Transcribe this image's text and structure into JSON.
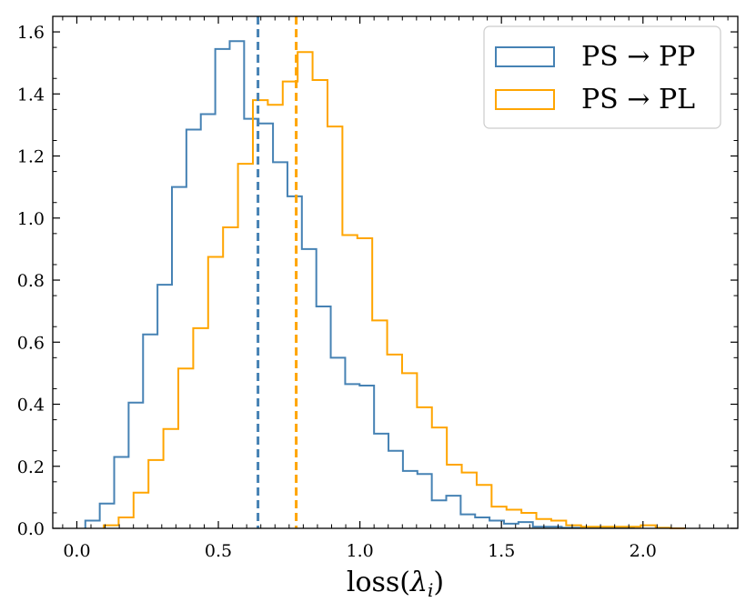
{
  "chart_data": {
    "type": "histogram",
    "title": "",
    "xlabel": "loss(λ_i)",
    "xlabel_parts": {
      "main": "loss(",
      "symbol": "λ",
      "subscript": "i",
      "close": ")"
    },
    "ylabel": "",
    "xlim": [
      -0.085,
      2.335
    ],
    "ylim": [
      0.0,
      1.65
    ],
    "xticks": [
      0.0,
      0.5,
      1.0,
      1.5,
      2.0
    ],
    "xtick_labels": [
      "0.0",
      "0.5",
      "1.0",
      "1.5",
      "2.0"
    ],
    "yticks": [
      0.0,
      0.2,
      0.4,
      0.6,
      0.8,
      1.0,
      1.2,
      1.4,
      1.6
    ],
    "ytick_labels": [
      "0.0",
      "0.2",
      "0.4",
      "0.6",
      "0.8",
      "1.0",
      "1.2",
      "1.4",
      "1.6"
    ],
    "legend_position": "top-right",
    "grid": false,
    "series": [
      {
        "name": "PS → PP",
        "legend_label": "PS → PP",
        "color": "#4682b4",
        "mean_line": 0.64,
        "bin_start": 0.03,
        "bin_width": 0.051,
        "values": [
          0.025,
          0.08,
          0.23,
          0.405,
          0.625,
          0.785,
          1.1,
          1.285,
          1.335,
          1.545,
          1.57,
          1.32,
          1.305,
          1.18,
          1.07,
          0.9,
          0.715,
          0.55,
          0.465,
          0.46,
          0.305,
          0.25,
          0.185,
          0.175,
          0.09,
          0.105,
          0.045,
          0.035,
          0.025,
          0.015,
          0.02,
          0.005,
          0.005,
          0.002,
          0.002,
          0.002,
          0.002,
          0.002
        ]
      },
      {
        "name": "PS → PL",
        "legend_label": "PS → PL",
        "color": "#ffa500",
        "mean_line": 0.775,
        "bin_start": 0.095,
        "bin_width": 0.0527,
        "values": [
          0.01,
          0.035,
          0.115,
          0.22,
          0.32,
          0.515,
          0.645,
          0.875,
          0.97,
          1.175,
          1.38,
          1.365,
          1.44,
          1.535,
          1.445,
          1.295,
          0.945,
          0.935,
          0.67,
          0.56,
          0.5,
          0.39,
          0.325,
          0.205,
          0.18,
          0.14,
          0.07,
          0.06,
          0.05,
          0.03,
          0.025,
          0.01,
          0.005,
          0.005,
          0.005,
          0.005,
          0.01,
          0.002,
          0.0
        ]
      }
    ]
  }
}
